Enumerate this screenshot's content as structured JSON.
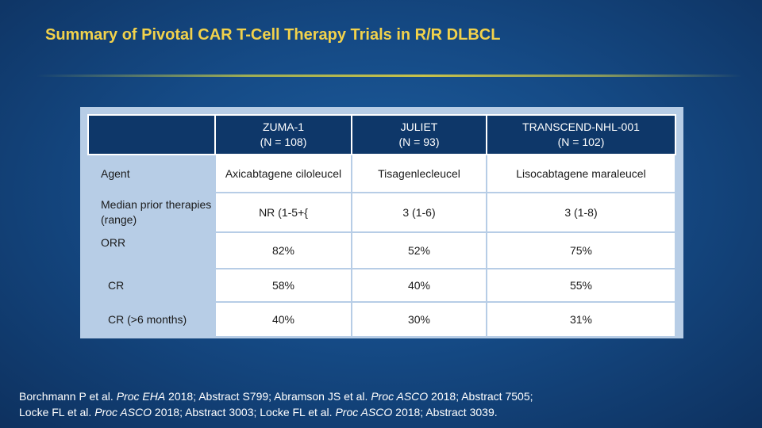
{
  "title": "Summary of Pivotal CAR T-Cell Therapy Trials in R/R DLBCL",
  "table": {
    "columns": [
      {
        "name": "ZUMA-1",
        "n": "(N = 108)"
      },
      {
        "name": "JULIET",
        "n": "(N = 93)"
      },
      {
        "name": "TRANSCEND-NHL-001",
        "n": "(N = 102)"
      }
    ],
    "rows": [
      {
        "label": "Agent",
        "values": [
          "Axicabtagene ciloleucel",
          "Tisagenlecleucel",
          "Lisocabtagene maraleucel"
        ]
      },
      {
        "label": "Median prior therapies (range)",
        "values": [
          "NR (1-5+{",
          "3 (1-6)",
          "3 (1-8)"
        ]
      },
      {
        "label": "ORR",
        "values": [
          "82%",
          "52%",
          "75%"
        ]
      },
      {
        "label": "CR",
        "values": [
          "58%",
          "40%",
          "55%"
        ]
      },
      {
        "label": "CR (>6 months)",
        "values": [
          "40%",
          "30%",
          "31%"
        ]
      }
    ]
  },
  "references": {
    "line1": {
      "p1": "Borchmann P et al. ",
      "j1": "Proc EHA",
      "p2": " 2018; Abstract S799; Abramson JS et al. ",
      "j2": "Proc ASCO",
      "p3": " 2018; Abstract 7505;"
    },
    "line2": {
      "p1": "Locke FL et al. ",
      "j1": "Proc ASCO",
      "p2": " 2018; Abstract 3003; Locke FL et al. ",
      "j2": "Proc ASCO",
      "p3": " 2018; Abstract 3039."
    }
  }
}
